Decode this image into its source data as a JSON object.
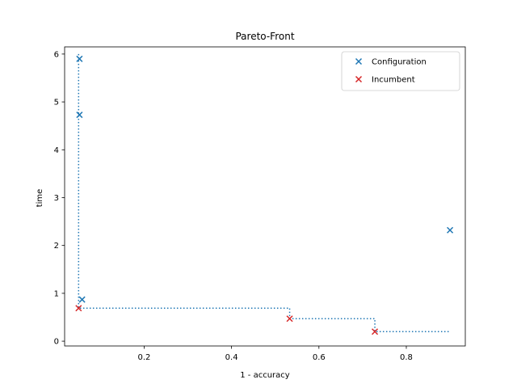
{
  "chart_data": {
    "type": "scatter",
    "title": "Pareto-Front",
    "xlabel": "1 - accuracy",
    "ylabel": "time",
    "xlim": [
      0.018,
      0.935
    ],
    "ylim": [
      -0.1,
      6.15
    ],
    "xticks": [
      0.2,
      0.4,
      0.6,
      0.8
    ],
    "xtick_labels": [
      "0.2",
      "0.4",
      "0.6",
      "0.8"
    ],
    "yticks": [
      0,
      1,
      2,
      3,
      4,
      5,
      6
    ],
    "ytick_labels": [
      "0",
      "1",
      "2",
      "3",
      "4",
      "5",
      "6"
    ],
    "grid": false,
    "legend_position": "top-right",
    "series": [
      {
        "name": "Configuration",
        "color": "#1f77b4",
        "marker": "x",
        "x": [
          0.052,
          0.052,
          0.058,
          0.9
        ],
        "y": [
          5.9,
          4.73,
          0.87,
          2.32
        ]
      },
      {
        "name": "Incumbent",
        "color": "#d62728",
        "marker": "x",
        "x": [
          0.05,
          0.533,
          0.728
        ],
        "y": [
          0.69,
          0.47,
          0.2
        ]
      }
    ],
    "pareto_front": {
      "color": "#1f77b4",
      "style": "dotted",
      "points": [
        [
          0.05,
          6.0
        ],
        [
          0.05,
          0.69
        ],
        [
          0.533,
          0.69
        ],
        [
          0.533,
          0.47
        ],
        [
          0.728,
          0.47
        ],
        [
          0.728,
          0.2
        ],
        [
          0.9,
          0.2
        ]
      ]
    }
  }
}
